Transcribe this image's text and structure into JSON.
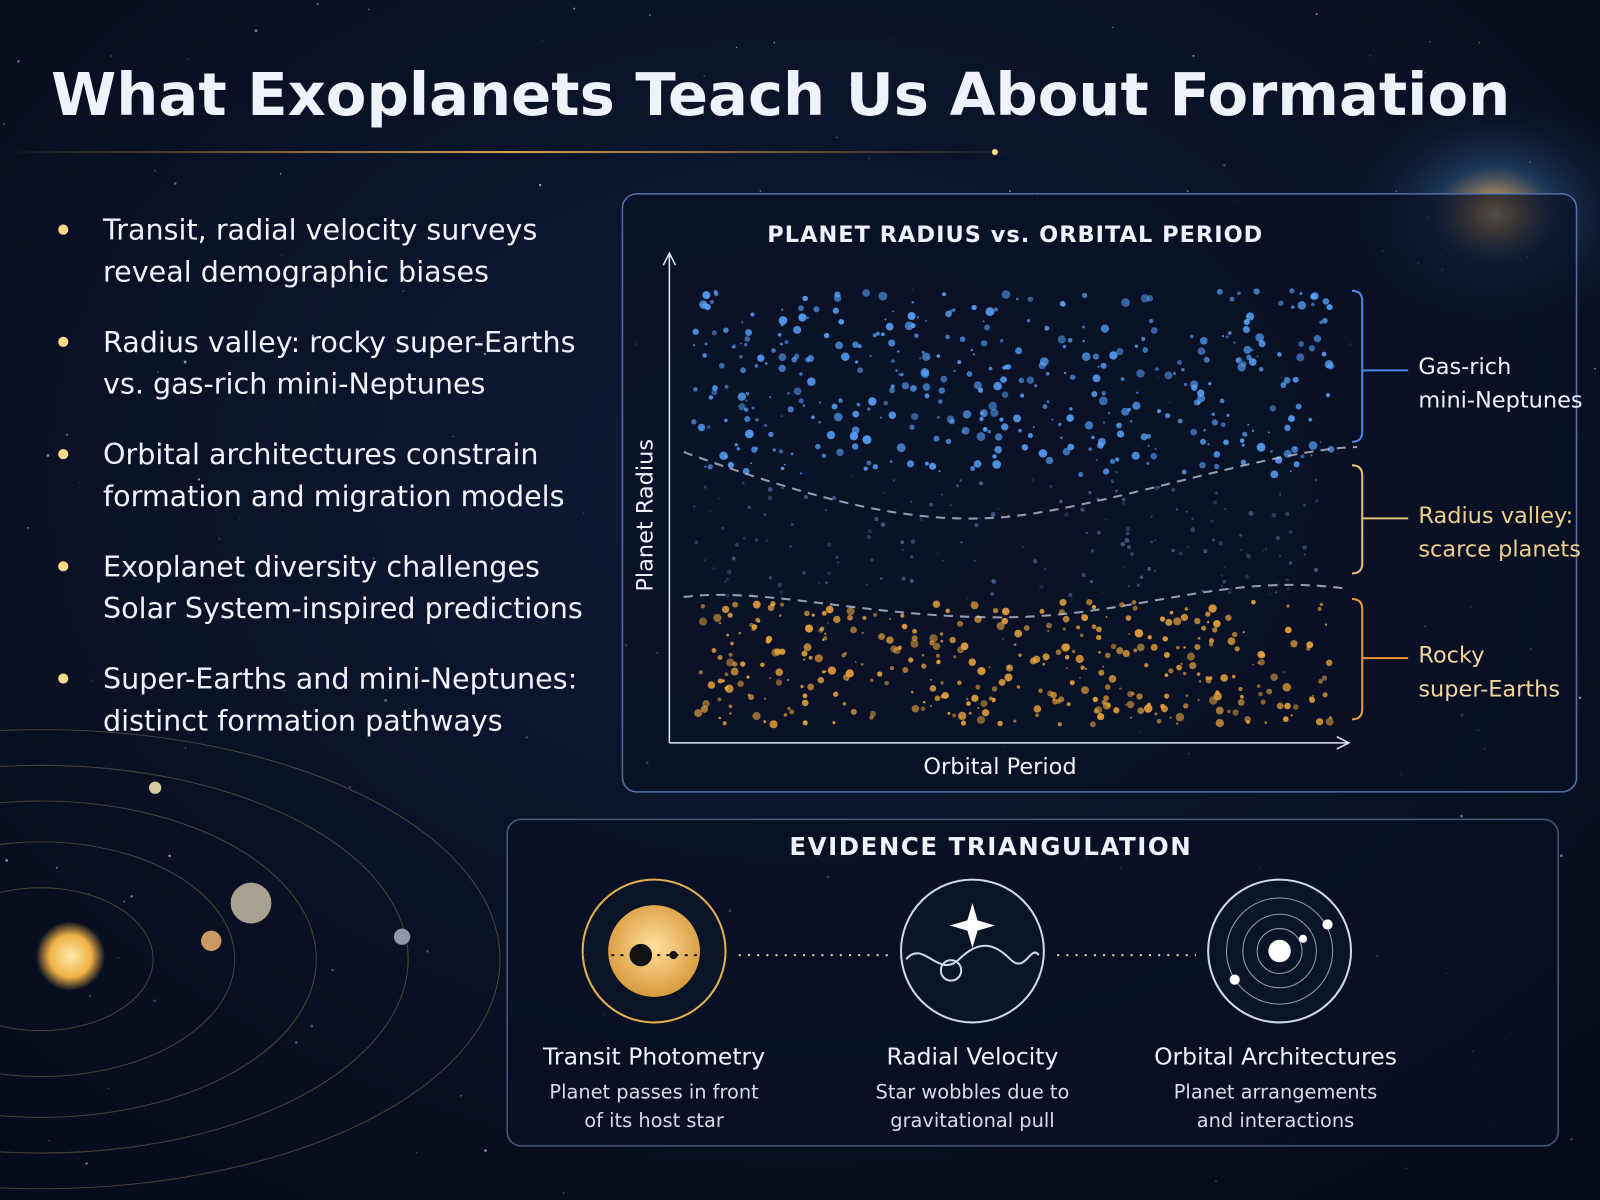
{
  "header": {
    "title": "What Exoplanets Teach Us About Formation"
  },
  "bullets": [
    [
      "Transit, radial velocity surveys",
      "reveal demographic biases"
    ],
    [
      "Radius valley: rocky super-Earths",
      "vs. gas-rich mini-Neptunes"
    ],
    [
      "Orbital architectures constrain",
      "formation and migration models"
    ],
    [
      "Exoplanet diversity challenges",
      "Solar System-inspired predictions"
    ],
    [
      "Super-Earths and mini-Neptunes:",
      "distinct formation pathways"
    ]
  ],
  "plot": {
    "title": "PLANET RADIUS vs. ORBITAL PERIOD",
    "y_label": "Planet Radius",
    "x_label": "Orbital Period",
    "bands": [
      {
        "lines": [
          "Gas-rich",
          "mini-Neptunes"
        ]
      },
      {
        "lines": [
          "Radius valley:",
          "scarce planets"
        ]
      },
      {
        "lines": [
          "Rocky",
          "super-Earths"
        ]
      }
    ]
  },
  "evidence": {
    "title": "EVIDENCE TRIANGULATION",
    "methods": [
      {
        "name": "Transit Photometry",
        "description": [
          "Planet passes in front",
          "of its host star"
        ]
      },
      {
        "name": "Radial Velocity",
        "description": [
          "Star wobbles due to",
          "gravitational pull"
        ]
      },
      {
        "name": "Orbital Architectures",
        "description": [
          "Planet arrangements",
          "and interactions"
        ]
      }
    ]
  }
}
